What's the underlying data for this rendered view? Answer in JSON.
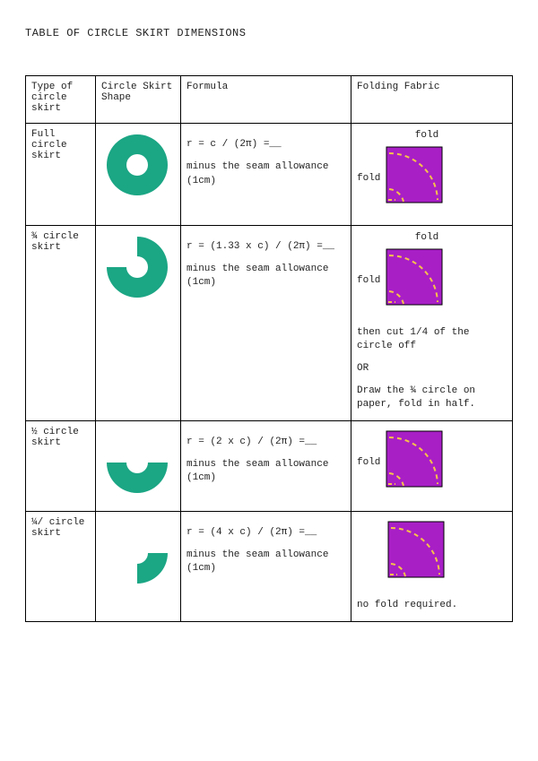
{
  "title": "TABLE OF CIRCLE SKIRT DIMENSIONS",
  "colors": {
    "shape_fill": "#1ba684",
    "swatch_fill": "#a81fc6",
    "swatch_border": "#000000",
    "dash": "#f5c24a"
  },
  "headers": {
    "type": "Type of circle skirt",
    "shape": "Circle Skirt Shape",
    "formula": "Formula",
    "folding": "Folding Fabric"
  },
  "rows": [
    {
      "id": "full",
      "type_label": "Full circle skirt",
      "shape": {
        "kind": "donut",
        "start_deg": 0,
        "sweep_deg": 360
      },
      "formula": "r = c / (2π) =__",
      "formula_note": "minus the seam allowance (1cm)",
      "fold_top_label": "fold",
      "fold_left_label": "fold",
      "fold_swatch": {
        "inner": true,
        "outer": true
      },
      "fold_extra": "",
      "fold_or": "",
      "fold_extra2": ""
    },
    {
      "id": "three-quarter",
      "type_label": "¾ circle skirt",
      "shape": {
        "kind": "donut",
        "start_deg": 0,
        "sweep_deg": 270
      },
      "formula": "r = (1.33 x c) / (2π) =__",
      "formula_note": "minus the seam allowance (1cm)",
      "fold_top_label": "fold",
      "fold_left_label": "fold",
      "fold_swatch": {
        "inner": true,
        "outer": true
      },
      "fold_extra": "then cut 1/4 of the circle off",
      "fold_or": "OR",
      "fold_extra2": "Draw the ¾ circle on paper, fold in half."
    },
    {
      "id": "half",
      "type_label": "½ circle skirt",
      "shape": {
        "kind": "donut",
        "start_deg": 90,
        "sweep_deg": 180
      },
      "formula": "r = (2 x c) / (2π) =__",
      "formula_note": "minus the seam allowance (1cm)",
      "fold_top_label": "",
      "fold_left_label": "fold",
      "fold_swatch": {
        "inner": true,
        "outer": true
      },
      "fold_extra": "",
      "fold_or": "",
      "fold_extra2": ""
    },
    {
      "id": "quarter",
      "type_label": "¼/ circle skirt",
      "shape": {
        "kind": "donut",
        "start_deg": 90,
        "sweep_deg": 90
      },
      "formula": "r = (4 x c) / (2π) =__",
      "formula_note": "minus the seam allowance (1cm)",
      "fold_top_label": "",
      "fold_left_label": "",
      "fold_swatch": {
        "inner": true,
        "outer": true
      },
      "fold_extra": "no fold required.",
      "fold_or": "",
      "fold_extra2": ""
    }
  ],
  "shape_svg": {
    "size": 80,
    "outer_r": 34,
    "inner_r": 12
  },
  "swatch_svg": {
    "size": 64
  }
}
